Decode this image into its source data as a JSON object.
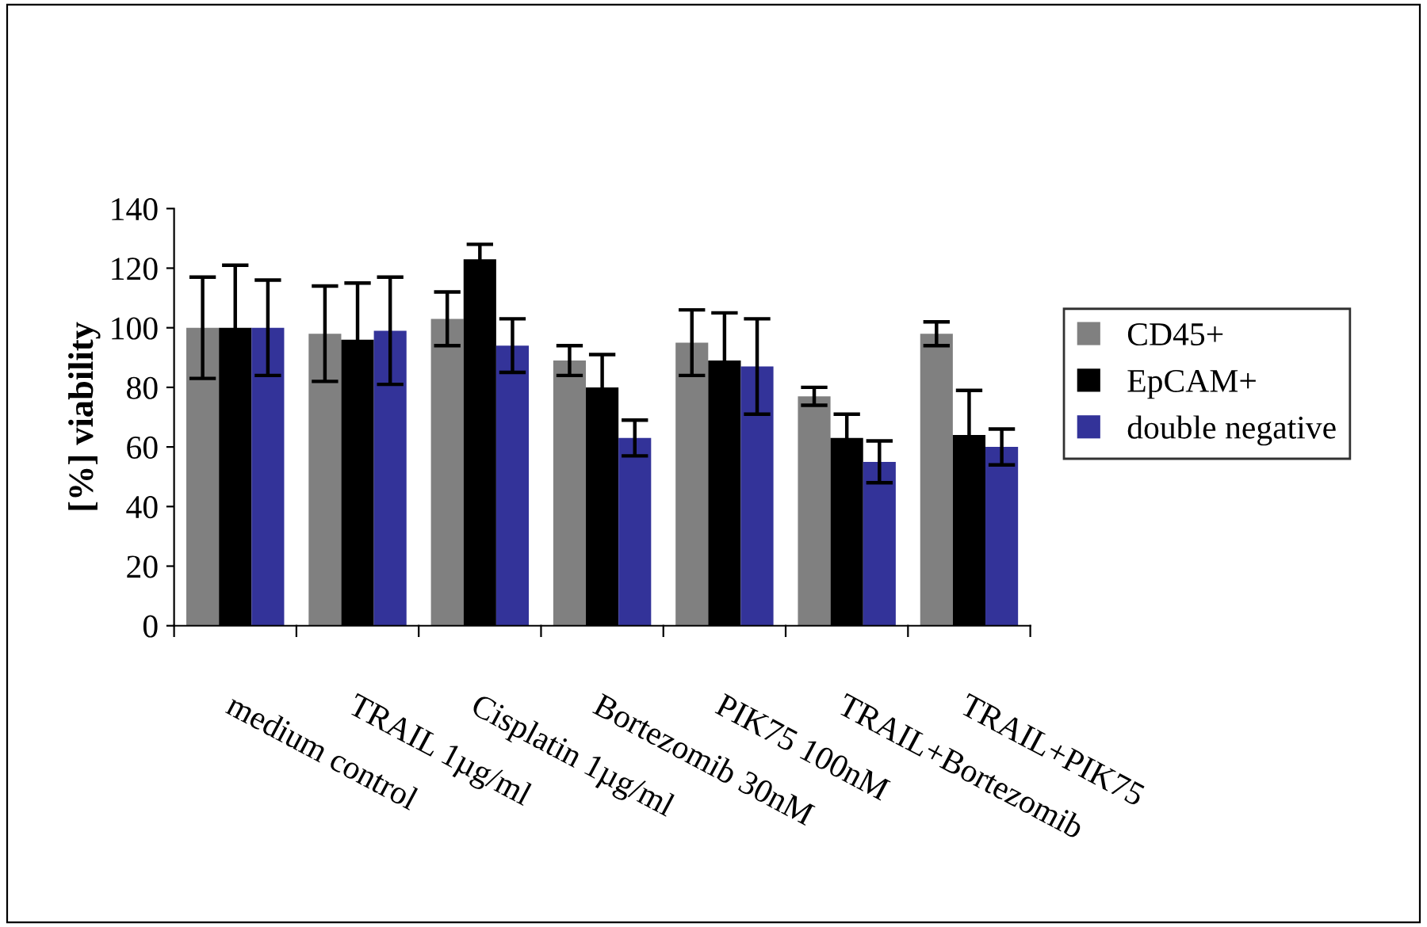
{
  "chart_data": {
    "type": "bar",
    "ylabel": "[%] viability",
    "categories": [
      "medium control",
      "TRAIL 1µg/ml",
      "Cisplatin 1µg/ml",
      "Bortezomib 30nM",
      "PIK75 100nM",
      "TRAIL+Bortezomib",
      "TRAIL+PIK75"
    ],
    "series": [
      {
        "name": "CD45+",
        "color": "#808080",
        "values": [
          100,
          98,
          103,
          89,
          95,
          77,
          98
        ],
        "errors": [
          17,
          16,
          9,
          5,
          11,
          3,
          4
        ]
      },
      {
        "name": "EpCAM+",
        "color": "#000000",
        "values": [
          100,
          96,
          123,
          80,
          89,
          63,
          64
        ],
        "errors": [
          21,
          19,
          5,
          11,
          16,
          8,
          15
        ]
      },
      {
        "name": "double negative",
        "color": "#333399",
        "values": [
          100,
          99,
          94,
          63,
          87,
          55,
          60
        ],
        "errors": [
          16,
          18,
          9,
          6,
          16,
          7,
          6
        ]
      }
    ],
    "ylim": [
      0,
      140
    ],
    "yticks": [
      0,
      20,
      40,
      60,
      80,
      100,
      120,
      140
    ],
    "grid": false,
    "legend": "right"
  }
}
